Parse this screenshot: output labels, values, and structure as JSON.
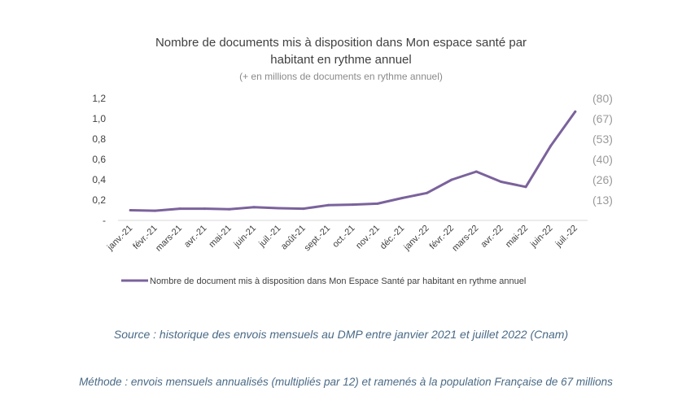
{
  "chart_data": {
    "type": "line",
    "title": "Nombre de documents mis à disposition dans Mon espace santé par habitant en rythme annuel",
    "title_lines": [
      "Nombre de documents mis à disposition dans Mon espace santé par",
      "habitant en rythme annuel"
    ],
    "subtitle": "(+ en millions de documents en rythme annuel)",
    "categories": [
      "janv.-21",
      "févr.-21",
      "mars-21",
      "avr.-21",
      "mai-21",
      "juin-21",
      "juil.-21",
      "août-21",
      "sept.-21",
      "oct.-21",
      "nov.-21",
      "déc.-21",
      "janv.-22",
      "févr.-22",
      "mars-22",
      "avr.-22",
      "mai-22",
      "juin-22",
      "juil.-22"
    ],
    "series": [
      {
        "name": "Nombre de document mis à disposition dans Mon Espace Santé par habitant en rythme annuel",
        "color": "#7b629c",
        "values": [
          0.1,
          0.095,
          0.115,
          0.115,
          0.11,
          0.13,
          0.12,
          0.115,
          0.15,
          0.155,
          0.165,
          0.22,
          0.27,
          0.4,
          0.48,
          0.38,
          0.33,
          0.73,
          1.07
        ]
      }
    ],
    "ylim": [
      0,
      1.2
    ],
    "yticks": [
      {
        "value": 0,
        "label": "-"
      },
      {
        "value": 0.2,
        "label": "0,2"
      },
      {
        "value": 0.4,
        "label": "0,4"
      },
      {
        "value": 0.6,
        "label": "0,6"
      },
      {
        "value": 0.8,
        "label": "0,8"
      },
      {
        "value": 1.0,
        "label": "1,0"
      },
      {
        "value": 1.2,
        "label": "1,2"
      }
    ],
    "y2ticks": [
      {
        "value": 0.2,
        "label": "(13)"
      },
      {
        "value": 0.4,
        "label": "(26)"
      },
      {
        "value": 0.6,
        "label": "(40)"
      },
      {
        "value": 0.8,
        "label": "(53)"
      },
      {
        "value": 1.0,
        "label": "(67)"
      },
      {
        "value": 1.2,
        "label": "(80)"
      }
    ],
    "grid": false,
    "legend": "bottom"
  },
  "notes": {
    "source": "Source : historique des envois mensuels au DMP entre janvier 2021 et juillet 2022 (Cnam)",
    "method": "Méthode : envois mensuels annualisés (multipliés par 12) et ramenés à la population Française de 67 millions"
  }
}
